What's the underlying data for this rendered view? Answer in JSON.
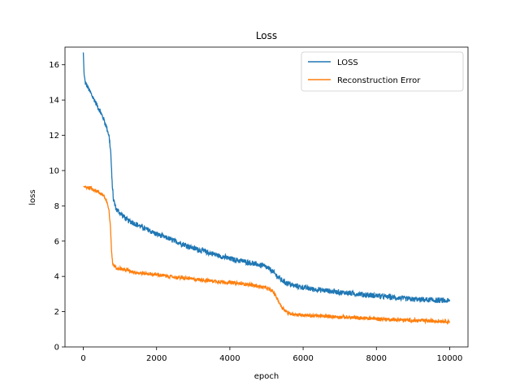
{
  "chart_data": {
    "type": "line",
    "title": "Loss",
    "xlabel": "epoch",
    "ylabel": "loss",
    "xlim": [
      -500,
      10500
    ],
    "ylim": [
      0,
      17
    ],
    "xticks": [
      0,
      2000,
      4000,
      6000,
      8000,
      10000
    ],
    "yticks": [
      0,
      2,
      4,
      6,
      8,
      10,
      12,
      14,
      16
    ],
    "legend_position": "top-right",
    "grid": false,
    "series": [
      {
        "name": "LOSS",
        "color": "#1f77b4",
        "noise": 0.18,
        "points": [
          [
            0,
            16.7
          ],
          [
            20,
            15.5
          ],
          [
            50,
            15.0
          ],
          [
            150,
            14.6
          ],
          [
            300,
            14.0
          ],
          [
            450,
            13.4
          ],
          [
            600,
            12.7
          ],
          [
            700,
            12.0
          ],
          [
            750,
            11.0
          ],
          [
            780,
            9.5
          ],
          [
            820,
            8.4
          ],
          [
            900,
            7.8
          ],
          [
            1200,
            7.2
          ],
          [
            1600,
            6.8
          ],
          [
            2000,
            6.4
          ],
          [
            2500,
            6.0
          ],
          [
            3000,
            5.6
          ],
          [
            3500,
            5.3
          ],
          [
            4000,
            5.0
          ],
          [
            4500,
            4.8
          ],
          [
            4900,
            4.6
          ],
          [
            5100,
            4.4
          ],
          [
            5400,
            3.8
          ],
          [
            5700,
            3.5
          ],
          [
            6200,
            3.3
          ],
          [
            7000,
            3.1
          ],
          [
            8000,
            2.9
          ],
          [
            9000,
            2.7
          ],
          [
            10000,
            2.6
          ]
        ]
      },
      {
        "name": "Reconstruction Error",
        "color": "#ff7f0e",
        "noise": 0.12,
        "points": [
          [
            0,
            9.1
          ],
          [
            200,
            9.0
          ],
          [
            400,
            8.8
          ],
          [
            550,
            8.6
          ],
          [
            650,
            8.2
          ],
          [
            700,
            7.7
          ],
          [
            740,
            6.8
          ],
          [
            770,
            5.5
          ],
          [
            800,
            4.7
          ],
          [
            900,
            4.5
          ],
          [
            1500,
            4.2
          ],
          [
            2000,
            4.1
          ],
          [
            2500,
            3.95
          ],
          [
            3000,
            3.85
          ],
          [
            3500,
            3.75
          ],
          [
            4000,
            3.65
          ],
          [
            4500,
            3.55
          ],
          [
            5000,
            3.35
          ],
          [
            5200,
            3.1
          ],
          [
            5400,
            2.3
          ],
          [
            5600,
            1.9
          ],
          [
            6000,
            1.8
          ],
          [
            7000,
            1.7
          ],
          [
            8000,
            1.6
          ],
          [
            9000,
            1.5
          ],
          [
            10000,
            1.45
          ]
        ]
      }
    ]
  }
}
